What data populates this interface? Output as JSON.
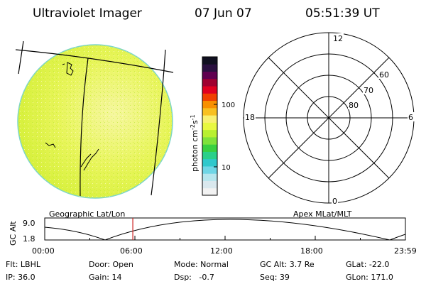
{
  "header": {
    "title": "Ultraviolet Imager",
    "date": "07 Jun 07",
    "time": "05:51:39 UT"
  },
  "colorbar": {
    "unit": "photon cm",
    "unit_exp1": "-2",
    "unit_mid": "s",
    "unit_exp2": "-1",
    "tick_100": "100",
    "tick_10": "10",
    "colors": [
      "#f2f2f2",
      "#d9e8ee",
      "#b6e6ee",
      "#6fd6e6",
      "#2fc8cc",
      "#2ad08a",
      "#38d040",
      "#7ee23a",
      "#b8f030",
      "#e8f840",
      "#f8f070",
      "#f8c020",
      "#f89000",
      "#f04000",
      "#e00020",
      "#a00030",
      "#600050",
      "#2a1040",
      "#101020"
    ]
  },
  "polar": {
    "label_12": "12",
    "label_6": "6",
    "label_18": "18",
    "label_0": "0",
    "label_60": "60",
    "label_70": "70",
    "label_80": "80"
  },
  "timeline": {
    "left_title": "Geographic Lat/Lon",
    "right_title": "Apex MLat/MLT",
    "yaxis_label": "GC Alt",
    "y_top": "9.0",
    "y_bottom": "1.8",
    "x_ticks": [
      "00:00",
      "06:00",
      "12:00",
      "18:00",
      "23:59"
    ],
    "marker_time": "05:51:39",
    "marker_color": "#cc2222"
  },
  "info": {
    "flt": "Flt: LBHL",
    "ip": "IP: 36.0",
    "door": "Door: Open",
    "gain": "Gain: 14",
    "mode": "Mode: Normal",
    "dsp": "Dsp:   -0.7",
    "gcalt": "GC Alt: 3.7 Re",
    "seq": "Seq: 39",
    "glat": "GLat: -22.0",
    "glon": "GLon: 171.0"
  }
}
